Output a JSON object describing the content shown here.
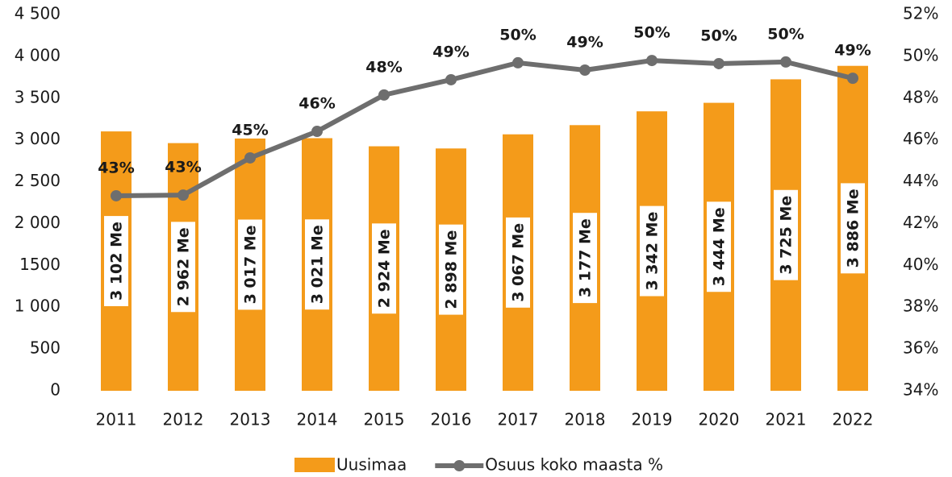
{
  "chart_data": {
    "type": "bar",
    "categories": [
      "2011",
      "2012",
      "2013",
      "2014",
      "2015",
      "2016",
      "2017",
      "2018",
      "2019",
      "2020",
      "2021",
      "2022"
    ],
    "series": [
      {
        "name": "Uusimaa",
        "type": "bar",
        "color": "#f49b1a",
        "values": [
          3102,
          2962,
          3017,
          3021,
          2924,
          2898,
          3067,
          3177,
          3342,
          3444,
          3725,
          3886
        ],
        "value_labels": [
          "3 102 Me",
          "2 962 Me",
          "3 017 Me",
          "3 021 Me",
          "2 924 Me",
          "2 898 Me",
          "3 067 Me",
          "3 177 Me",
          "3 342 Me",
          "3 444 Me",
          "3 725 Me",
          "3 886 Me"
        ]
      },
      {
        "name": "Osuus koko maasta %",
        "type": "line",
        "axis": "y2",
        "color": "#6e6e6e",
        "values": [
          43.33,
          43.36,
          45.14,
          46.41,
          48.15,
          48.88,
          49.69,
          49.34,
          49.8,
          49.65,
          49.73,
          48.95
        ],
        "value_labels": [
          "43%",
          "43%",
          "45%",
          "46%",
          "48%",
          "49%",
          "50%",
          "49%",
          "50%",
          "50%",
          "50%",
          "49%"
        ]
      }
    ],
    "ylim": [
      0,
      4500
    ],
    "yticks": [
      0,
      500,
      {
        "value": 1000,
        "label": "1 000"
      },
      1500,
      {
        "value": 2000,
        "label": "2 000"
      },
      {
        "value": 2500,
        "label": "2 500"
      },
      {
        "value": 3000,
        "label": "3 000"
      },
      {
        "value": 3500,
        "label": "3 500"
      },
      {
        "value": 4000,
        "label": "4 000"
      },
      {
        "value": 4500,
        "label": "4 500"
      }
    ],
    "y2lim": [
      34,
      52
    ],
    "y2ticks": [
      {
        "value": 34,
        "label": "34%"
      },
      {
        "value": 36,
        "label": "36%"
      },
      {
        "value": 38,
        "label": "38%"
      },
      {
        "value": 40,
        "label": "40%"
      },
      {
        "value": 42,
        "label": "42%"
      },
      {
        "value": 44,
        "label": "44%"
      },
      {
        "value": 46,
        "label": "46%"
      },
      {
        "value": 48,
        "label": "48%"
      },
      {
        "value": 50,
        "label": "50%"
      },
      {
        "value": 52,
        "label": "52%"
      }
    ],
    "legend": "bottom"
  }
}
